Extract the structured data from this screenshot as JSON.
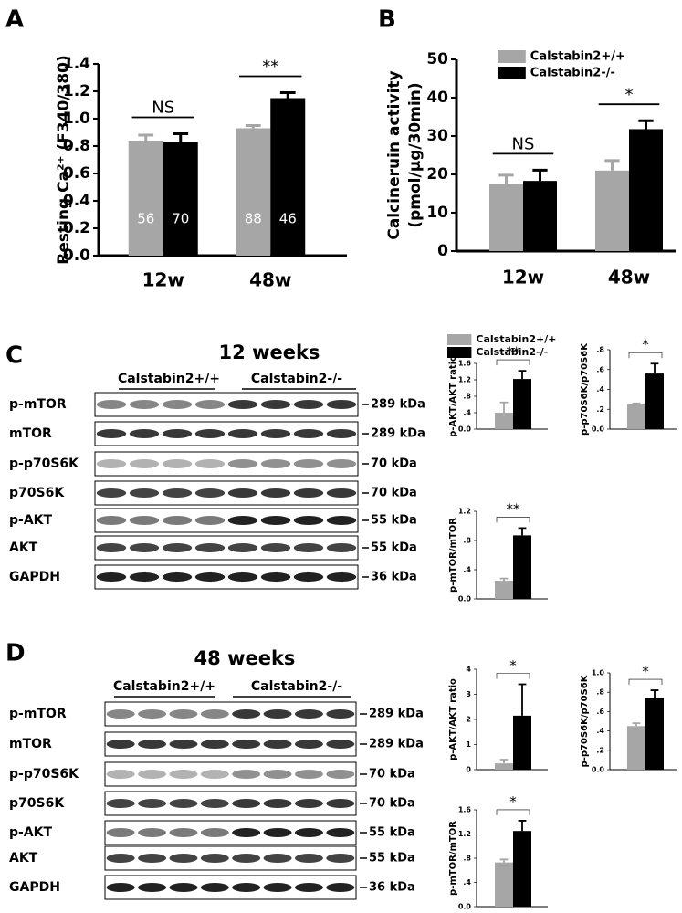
{
  "panel_labels": [
    "A",
    "B",
    "C",
    "D"
  ],
  "chart_data": [
    {
      "type": "bar",
      "y_label": [
        "Resting Ca²⁺ (F340/380)"
      ],
      "categories": [
        "12w",
        "48w"
      ],
      "series": [
        {
          "color": "#a6a6a6",
          "values": [
            0.84,
            0.93
          ],
          "errors": [
            0.04,
            0.02
          ],
          "n": [
            56,
            88
          ]
        },
        {
          "color": "#000000",
          "values": [
            0.83,
            1.15
          ],
          "errors": [
            0.06,
            0.04
          ],
          "n": [
            70,
            46
          ]
        }
      ],
      "significance": [
        "NS",
        "**"
      ],
      "ylim": [
        0,
        1.4
      ],
      "yticks": [
        {
          "value": 0,
          "label": "0.0"
        },
        0.2,
        0.4,
        0.6,
        0.8,
        {
          "value": 1,
          "label": "1.0"
        },
        1.2,
        1.4
      ]
    },
    {
      "type": "bar",
      "y_label": [
        "Calcineruin activity",
        "(pmol/μg/30min)"
      ],
      "categories": [
        "12w",
        "48w"
      ],
      "series": [
        {
          "name": "Calstabin2+/+",
          "color": "#a6a6a6",
          "values": [
            17.5,
            21
          ],
          "errors": [
            2.3,
            2.6
          ]
        },
        {
          "name": "Calstabin2-/-",
          "color": "#000000",
          "values": [
            18.3,
            31.8
          ],
          "errors": [
            2.8,
            2.2
          ]
        }
      ],
      "significance": [
        "NS",
        "*"
      ],
      "ylim": [
        0,
        50
      ],
      "yticks": [
        0,
        10,
        20,
        30,
        40,
        50
      ]
    },
    {
      "type": "bar",
      "y_label": [
        "p-AKT/AKT ratio"
      ],
      "categories": [
        null
      ],
      "series": [
        {
          "name": "Calstabin2+/+",
          "color": "#a6a6a6",
          "values": [
            0.4
          ],
          "errors": [
            0.25
          ]
        },
        {
          "name": "Calstabin2-/-",
          "color": "#000000",
          "values": [
            1.22
          ],
          "errors": [
            0.2
          ]
        }
      ],
      "significance": [
        "**"
      ],
      "ylim": [
        0,
        1.6
      ],
      "yticks": [
        {
          "value": 0,
          "label": "0.0"
        },
        {
          "value": 0.4,
          "label": ".4"
        },
        {
          "value": 0.8,
          "label": ".8"
        },
        1.2,
        1.6
      ]
    },
    {
      "type": "bar",
      "y_label": [
        "p-p70S6K/p70S6K"
      ],
      "categories": [
        null
      ],
      "series": [
        {
          "color": "#a6a6a6",
          "values": [
            0.25
          ],
          "errors": [
            0.01
          ]
        },
        {
          "color": "#000000",
          "values": [
            0.56
          ],
          "errors": [
            0.1
          ]
        }
      ],
      "significance": [
        "*"
      ],
      "ylim": [
        0,
        0.8
      ],
      "yticks": [
        {
          "value": 0,
          "label": "0.0"
        },
        {
          "value": 0.2,
          "label": ".2"
        },
        {
          "value": 0.4,
          "label": ".4"
        },
        {
          "value": 0.6,
          "label": ".6"
        },
        {
          "value": 0.8,
          "label": ".8"
        }
      ]
    },
    {
      "type": "bar",
      "y_label": [
        "p-mTOR/mTOR"
      ],
      "categories": [
        null
      ],
      "series": [
        {
          "color": "#a6a6a6",
          "values": [
            0.25
          ],
          "errors": [
            0.03
          ]
        },
        {
          "color": "#000000",
          "values": [
            0.87
          ],
          "errors": [
            0.1
          ]
        }
      ],
      "significance": [
        "**"
      ],
      "ylim": [
        0,
        1.2
      ],
      "yticks": [
        {
          "value": 0,
          "label": "0.0"
        },
        {
          "value": 0.4,
          "label": ".4"
        },
        {
          "value": 0.8,
          "label": ".8"
        },
        1.2
      ]
    },
    {
      "type": "bar",
      "y_label": [
        "p-AKT/AKT ratio"
      ],
      "categories": [
        null
      ],
      "series": [
        {
          "color": "#a6a6a6",
          "values": [
            0.25
          ],
          "errors": [
            0.15
          ]
        },
        {
          "color": "#000000",
          "values": [
            2.15
          ],
          "errors": [
            1.25
          ]
        }
      ],
      "significance": [
        "*"
      ],
      "ylim": [
        0,
        4
      ],
      "yticks": [
        0,
        1,
        2,
        3,
        4
      ]
    },
    {
      "type": "bar",
      "y_label": [
        "p-p70S6K/p70S6K"
      ],
      "categories": [
        null
      ],
      "series": [
        {
          "color": "#a6a6a6",
          "values": [
            0.45
          ],
          "errors": [
            0.03
          ]
        },
        {
          "color": "#000000",
          "values": [
            0.74
          ],
          "errors": [
            0.08
          ]
        }
      ],
      "significance": [
        "*"
      ],
      "ylim": [
        0,
        1
      ],
      "yticks": [
        {
          "value": 0,
          "label": "0.0"
        },
        {
          "value": 0.2,
          "label": ".2"
        },
        {
          "value": 0.4,
          "label": ".4"
        },
        {
          "value": 0.6,
          "label": ".6"
        },
        {
          "value": 0.8,
          "label": ".8"
        },
        {
          "value": 1,
          "label": "1.0"
        }
      ]
    },
    {
      "type": "bar",
      "y_label": [
        "p-mTOR/mTOR"
      ],
      "categories": [
        null
      ],
      "series": [
        {
          "color": "#a6a6a6",
          "values": [
            0.73
          ],
          "errors": [
            0.05
          ]
        },
        {
          "color": "#000000",
          "values": [
            1.25
          ],
          "errors": [
            0.17
          ]
        }
      ],
      "significance": [
        "*"
      ],
      "ylim": [
        0,
        1.6
      ],
      "yticks": [
        {
          "value": 0,
          "label": "0.0"
        },
        {
          "value": 0.4,
          "label": ".4"
        },
        {
          "value": 0.8,
          "label": ".8"
        },
        1.2,
        1.6
      ]
    }
  ],
  "blots": [
    {
      "title": "12 weeks",
      "groups": [
        "Calstabin2+/+",
        "Calstabin2-/-"
      ],
      "rows": [
        {
          "label": "p-mTOR",
          "size": "289 kDa"
        },
        {
          "label": "mTOR",
          "size": "289 kDa"
        },
        {
          "label": "p-p70S6K",
          "size": "70 kDa"
        },
        {
          "label": "p70S6K",
          "size": "70 kDa"
        },
        {
          "label": "p-AKT",
          "size": "55 kDa"
        },
        {
          "label": "AKT",
          "size": "55 kDa"
        },
        {
          "label": "GAPDH",
          "size": "36 kDa"
        }
      ]
    },
    {
      "title": "48 weeks",
      "groups": [
        "Calstabin2+/+",
        "Calstabin2-/-"
      ],
      "rows": [
        {
          "label": "p-mTOR",
          "size": "289 kDa"
        },
        {
          "label": "mTOR",
          "size": "289 kDa"
        },
        {
          "label": "p-p70S6K",
          "size": "70 kDa"
        },
        {
          "label": "p70S6K",
          "size": "70 kDa"
        },
        {
          "label": "p-AKT",
          "size": "55 kDa"
        },
        {
          "label": "AKT",
          "size": "55 kDa"
        },
        {
          "label": "GAPDH",
          "size": "36 kDa"
        }
      ]
    }
  ]
}
